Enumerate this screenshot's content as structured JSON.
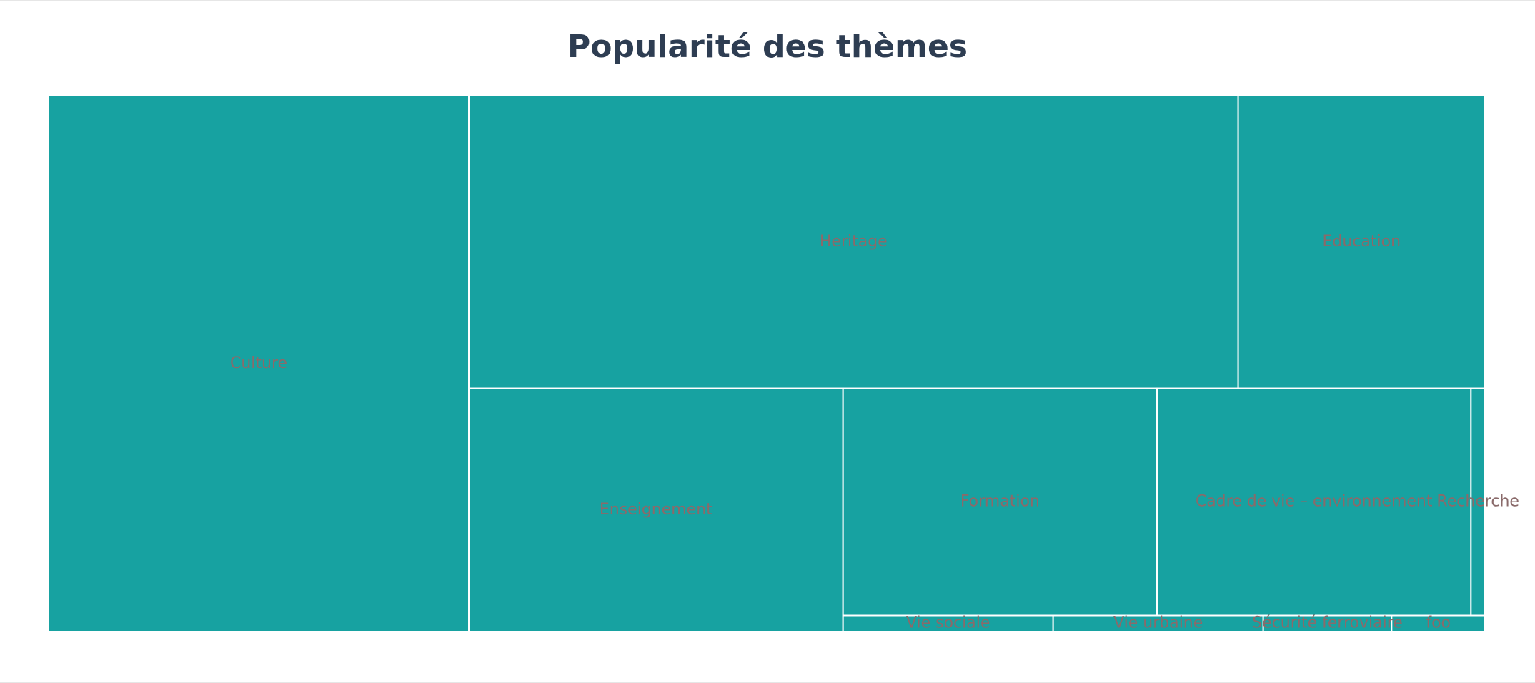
{
  "chart_data": {
    "type": "treemap",
    "title": "Popularité des thèmes",
    "colors": {
      "tile": "#17a2a1",
      "border": "#ffffff",
      "label": "#8a6a6a",
      "title": "#2e3d52"
    },
    "items": [
      {
        "label": "Culture",
        "value": 240
      },
      {
        "label": "Heritage",
        "value": 240
      },
      {
        "label": "Education",
        "value": 77
      },
      {
        "label": "Enseignement",
        "value": 97
      },
      {
        "label": "Formation",
        "value": 76
      },
      {
        "label": "Cadre de vie – environnement",
        "value": 76
      },
      {
        "label": "Recherche",
        "value": 3.4
      },
      {
        "label": "Vie sociale",
        "value": 3.6
      },
      {
        "label": "Vie urbaine",
        "value": 3.6
      },
      {
        "label": "Sécurité ferroviaire",
        "value": 2.2
      },
      {
        "label": "foo",
        "value": 1.6
      }
    ]
  }
}
